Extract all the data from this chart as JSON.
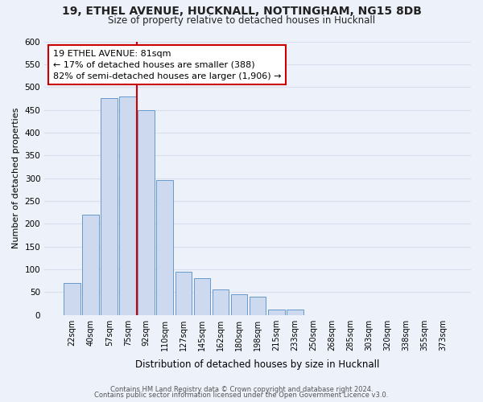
{
  "title_line1": "19, ETHEL AVENUE, HUCKNALL, NOTTINGHAM, NG15 8DB",
  "title_line2": "Size of property relative to detached houses in Hucknall",
  "xlabel": "Distribution of detached houses by size in Hucknall",
  "ylabel": "Number of detached properties",
  "bar_labels": [
    "22sqm",
    "40sqm",
    "57sqm",
    "75sqm",
    "92sqm",
    "110sqm",
    "127sqm",
    "145sqm",
    "162sqm",
    "180sqm",
    "198sqm",
    "215sqm",
    "233sqm",
    "250sqm",
    "268sqm",
    "285sqm",
    "303sqm",
    "320sqm",
    "338sqm",
    "355sqm",
    "373sqm"
  ],
  "bar_values": [
    70,
    220,
    475,
    480,
    450,
    295,
    95,
    80,
    55,
    45,
    40,
    12,
    12,
    0,
    0,
    0,
    0,
    0,
    0,
    0,
    0
  ],
  "bar_color": "#ccd9ee",
  "bar_edge_color": "#6699cc",
  "vline_color": "#cc0000",
  "annotation_line1": "19 ETHEL AVENUE: 81sqm",
  "annotation_line2": "← 17% of detached houses are smaller (388)",
  "annotation_line3": "82% of semi-detached houses are larger (1,906) →",
  "annotation_box_color": "#ffffff",
  "annotation_box_edge": "#cc0000",
  "ylim": [
    0,
    600
  ],
  "yticks": [
    0,
    50,
    100,
    150,
    200,
    250,
    300,
    350,
    400,
    450,
    500,
    550,
    600
  ],
  "footer_line1": "Contains HM Land Registry data © Crown copyright and database right 2024.",
  "footer_line2": "Contains public sector information licensed under the Open Government Licence v3.0.",
  "bg_color": "#edf1f9",
  "grid_color": "#d8e0f0"
}
